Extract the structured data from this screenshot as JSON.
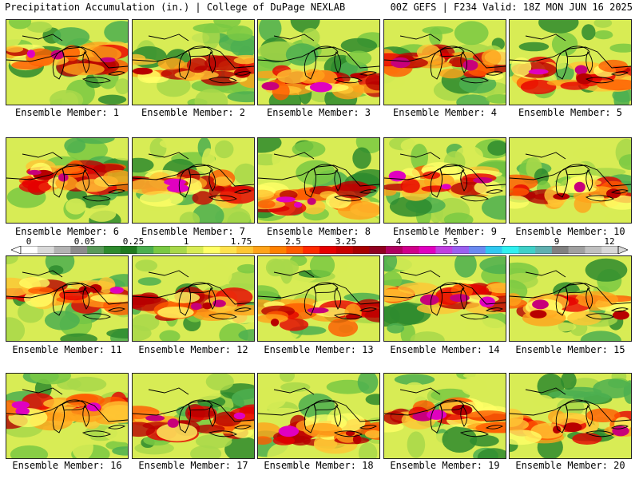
{
  "header": {
    "left_title": "Precipitation Accumulation (in.) | College of DuPage NEXLAB",
    "right_title": "00Z GEFS | F234 Valid: 18Z MON JUN 16 2025"
  },
  "panel_label_prefix": "Ensemble Member:",
  "members": [
    {
      "id": "1",
      "label": "Ensemble Member: 1"
    },
    {
      "id": "2",
      "label": "Ensemble Member: 2"
    },
    {
      "id": "3",
      "label": "Ensemble Member: 3"
    },
    {
      "id": "4",
      "label": "Ensemble Member: 4"
    },
    {
      "id": "5",
      "label": "Ensemble Member: 5"
    },
    {
      "id": "6",
      "label": "Ensemble Member: 6"
    },
    {
      "id": "7",
      "label": "Ensemble Member: 7"
    },
    {
      "id": "8",
      "label": "Ensemble Member: 8"
    },
    {
      "id": "9",
      "label": "Ensemble Member: 9"
    },
    {
      "id": "10",
      "label": "Ensemble Member: 10"
    },
    {
      "id": "11",
      "label": "Ensemble Member: 11"
    },
    {
      "id": "12",
      "label": "Ensemble Member: 12"
    },
    {
      "id": "13",
      "label": "Ensemble Member: 13"
    },
    {
      "id": "14",
      "label": "Ensemble Member: 14"
    },
    {
      "id": "15",
      "label": "Ensemble Member: 15"
    },
    {
      "id": "16",
      "label": "Ensemble Member: 16"
    },
    {
      "id": "17",
      "label": "Ensemble Member: 17"
    },
    {
      "id": "18",
      "label": "Ensemble Member: 18"
    },
    {
      "id": "19",
      "label": "Ensemble Member: 19"
    },
    {
      "id": "20",
      "label": "Ensemble Member: 20"
    }
  ],
  "colorbar": {
    "tick_labels": [
      "0",
      "0.05",
      "0.25",
      "1",
      "1.75",
      "2.5",
      "3.25",
      "4",
      "5.5",
      "7",
      "9",
      "12"
    ],
    "colors": [
      "#ffffff",
      "#d9d9d9",
      "#b3b3b3",
      "#8c8c8c",
      "#5a9a5a",
      "#2e8b2e",
      "#1f7a1f",
      "#4caf50",
      "#7ac943",
      "#a8d84a",
      "#d8ec55",
      "#ffff66",
      "#ffe24d",
      "#ffc633",
      "#ffa31a",
      "#ff8000",
      "#ff5a00",
      "#ff2a00",
      "#e60000",
      "#c80000",
      "#a80000",
      "#900020",
      "#b00060",
      "#d0008a",
      "#e000c0",
      "#c040e0",
      "#9a60f0",
      "#6a8af0",
      "#30c8f0",
      "#30f0f0",
      "#40d0c8",
      "#60b0b0",
      "#808080",
      "#a0a0a0",
      "#c0c0c0",
      "#d8d8d8"
    ]
  }
}
